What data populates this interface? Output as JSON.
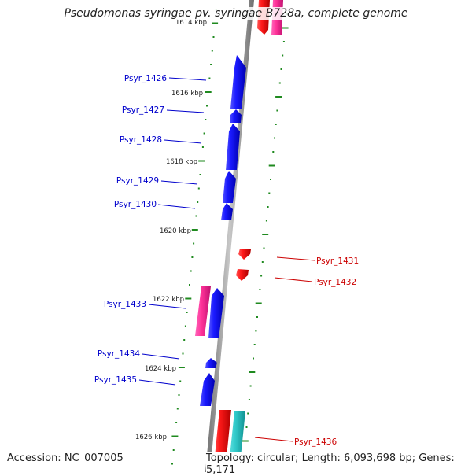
{
  "title": "Pseudomonas syringae pv. syringae B728a, complete genome",
  "accession": "Accession: NC_007005",
  "summary": "Topology: circular; Length: 6,093,698 bp; Genes: 5,171",
  "ticks": [
    {
      "label": "1614 kbp"
    },
    {
      "label": "1616 kbp"
    },
    {
      "label": "1618 kbp"
    },
    {
      "label": "1620 kbp"
    },
    {
      "label": "1622 kbp"
    },
    {
      "label": "1624 kbp"
    },
    {
      "label": "1626 kbp"
    }
  ],
  "genes": [
    {
      "name": "Psyr_1426",
      "color": "#0000ee"
    },
    {
      "name": "Psyr_1427",
      "color": "#0000ee"
    },
    {
      "name": "Psyr_1428",
      "color": "#0000ee"
    },
    {
      "name": "Psyr_1429",
      "color": "#0000ee"
    },
    {
      "name": "Psyr_1430",
      "color": "#0000ee"
    },
    {
      "name": "Psyr_1431",
      "color": "#ee0000"
    },
    {
      "name": "Psyr_1432",
      "color": "#ee0000"
    },
    {
      "name": "Psyr_1433",
      "color": "#0000ee"
    },
    {
      "name": "Psyr_1434",
      "color": "#0000ee"
    },
    {
      "name": "Psyr_1435",
      "color": "#0000ee"
    },
    {
      "name": "Psyr_1436",
      "color": "#ee0000"
    }
  ],
  "colors": {
    "backbone": "#8c8c8c",
    "forward_cds": "#0000ee",
    "reverse_cds": "#ee0000",
    "rna_pink": "#ff3399",
    "rna_cyan": "#33cccc",
    "tick_marks": "#1f8a1f"
  }
}
